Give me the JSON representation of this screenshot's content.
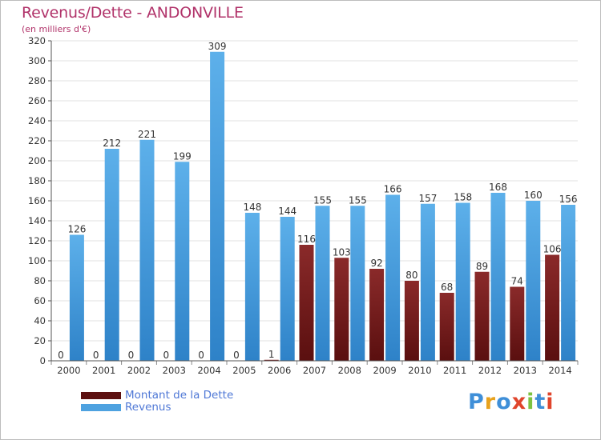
{
  "header": {
    "title": "Revenus/Dette - ANDONVILLE",
    "subtitle": "(en milliers d'€)"
  },
  "colors": {
    "debt": "#7a1e1e",
    "revenue": "#4ea2e0",
    "title": "#b1336a",
    "legend_text": "#4f78d6"
  },
  "chart_data": {
    "type": "bar",
    "title": "Revenus/Dette - ANDONVILLE",
    "ylabel": "(en milliers d'€)",
    "xlabel": "",
    "ylim": [
      0,
      320
    ],
    "yticks": [
      0,
      20,
      40,
      60,
      80,
      100,
      120,
      140,
      160,
      180,
      200,
      220,
      240,
      260,
      280,
      300,
      320
    ],
    "grid": true,
    "legend": "bottom-left",
    "categories": [
      "2000",
      "2001",
      "2002",
      "2003",
      "2004",
      "2005",
      "2006",
      "2007",
      "2008",
      "2009",
      "2010",
      "2011",
      "2012",
      "2013",
      "2014"
    ],
    "series": [
      {
        "name": "Montant de la Dette",
        "values": [
          0,
          0,
          0,
          0,
          0,
          0,
          1,
          116,
          103,
          92,
          80,
          68,
          89,
          74,
          106
        ]
      },
      {
        "name": "Revenus",
        "values": [
          126,
          212,
          221,
          199,
          309,
          148,
          144,
          155,
          155,
          166,
          157,
          158,
          168,
          160,
          156
        ]
      }
    ]
  },
  "legend": {
    "items": [
      {
        "label": "Montant de la Dette"
      },
      {
        "label": "Revenus"
      }
    ]
  },
  "logo": {
    "letters": [
      {
        "ch": "P",
        "color": "#3f8fd8"
      },
      {
        "ch": "r",
        "color": "#e8a21d"
      },
      {
        "ch": "o",
        "color": "#3f8fd8"
      },
      {
        "ch": "x",
        "color": "#e0452c"
      },
      {
        "ch": "i",
        "color": "#7cc241"
      },
      {
        "ch": "t",
        "color": "#3f8fd8"
      },
      {
        "ch": "i",
        "color": "#e0452c"
      }
    ]
  }
}
